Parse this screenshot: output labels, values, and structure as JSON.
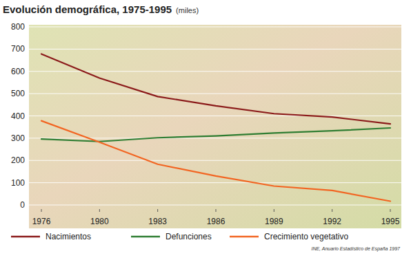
{
  "chart_data": {
    "type": "line",
    "title": "Evolución demográfica, 1975-1995",
    "subtitle": "(miles)",
    "source": "INE, Anuario Estadístico de España 1997",
    "categories": [
      "1976",
      "1980",
      "1983",
      "1986",
      "1989",
      "1992",
      "1995"
    ],
    "series": [
      {
        "name": "Nacimientos",
        "color": "#8b1a1a",
        "values": [
          678,
          570,
          487,
          445,
          410,
          395,
          364
        ]
      },
      {
        "name": "Defunciones",
        "color": "#2e7d32",
        "values": [
          296,
          285,
          302,
          310,
          323,
          333,
          346
        ]
      },
      {
        "name": "Crecimiento vegetativo",
        "color": "#f26522",
        "values": [
          378,
          282,
          183,
          130,
          85,
          65,
          17
        ]
      }
    ],
    "ylim": [
      0,
      800
    ],
    "yticks": [
      0,
      100,
      200,
      300,
      400,
      500,
      600,
      700,
      800
    ],
    "grid": true,
    "legend": "bottom"
  }
}
